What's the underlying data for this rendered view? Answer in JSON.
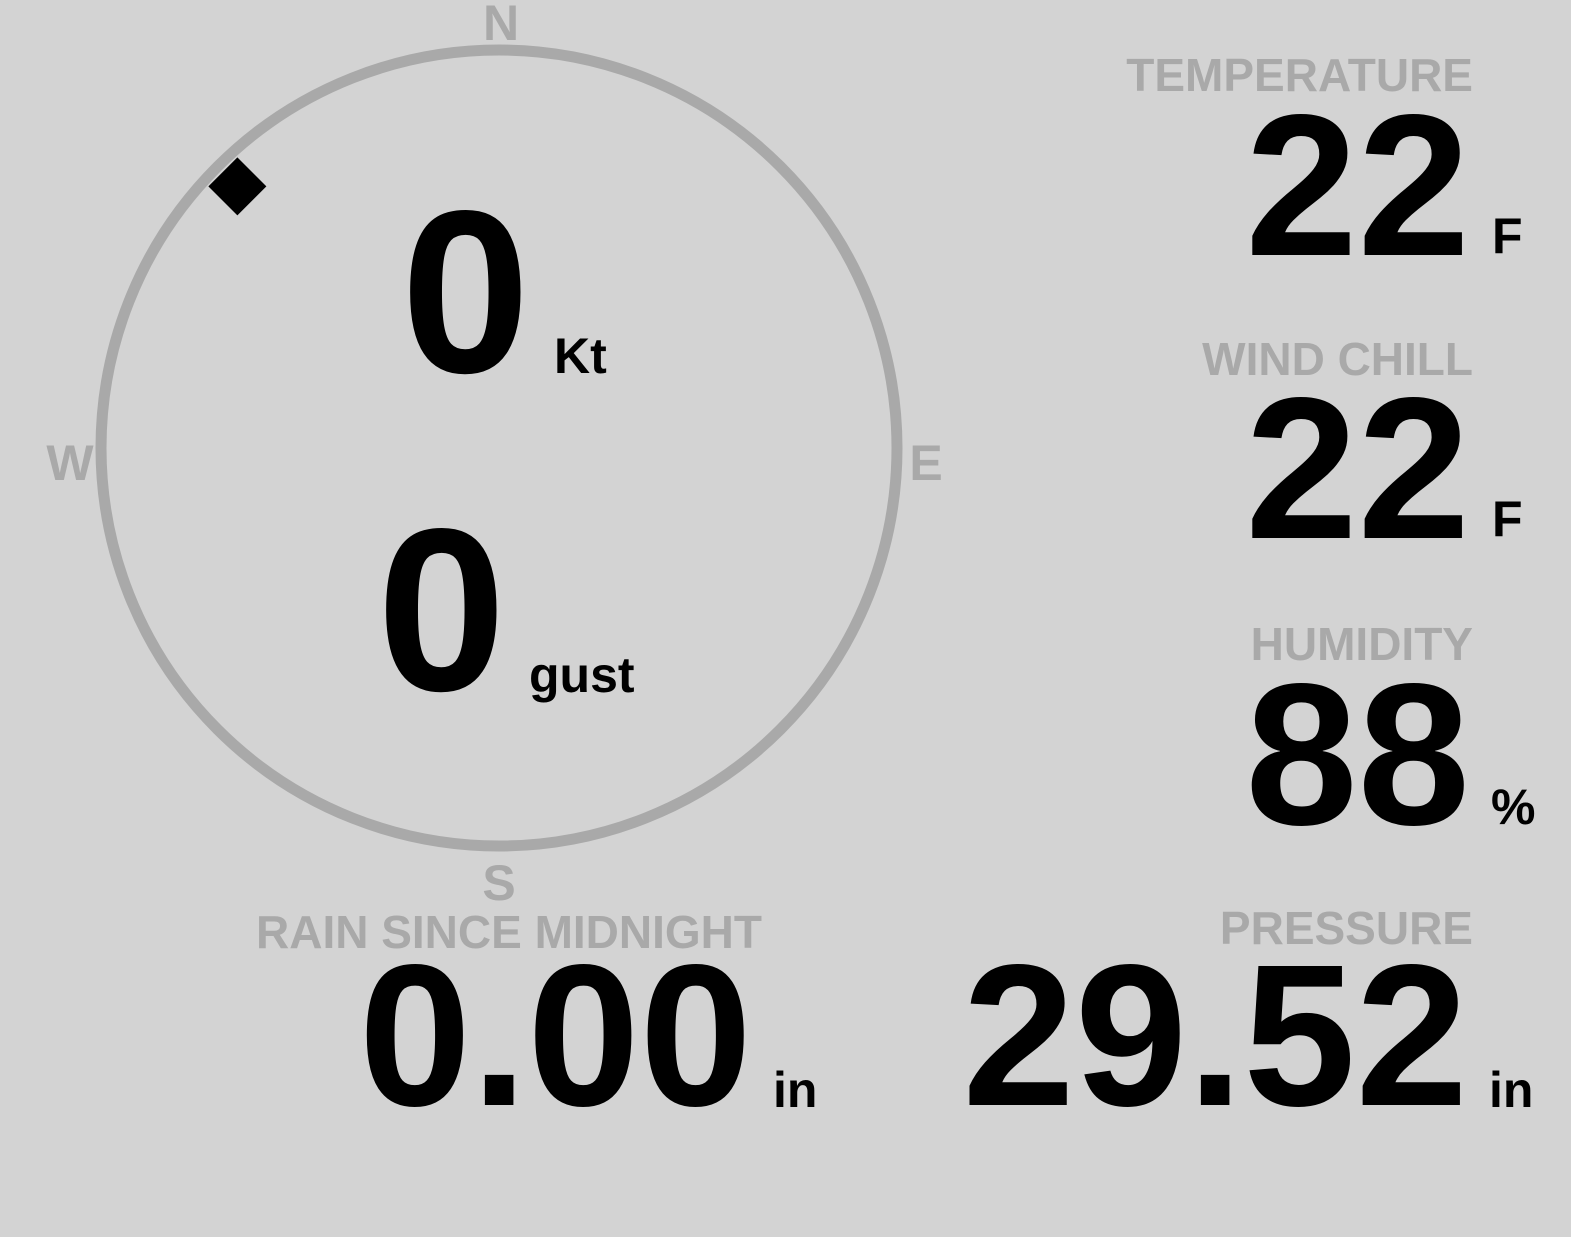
{
  "colors": {
    "background": "#d3d3d3",
    "label": "#a9a9a9",
    "value": "#000000"
  },
  "compass": {
    "north": "N",
    "east": "E",
    "south": "S",
    "west": "W",
    "wind_direction_deg": 315,
    "marker_icon": "diamond-icon"
  },
  "wind": {
    "speed": "0",
    "speed_unit": "Kt",
    "gust": "0",
    "gust_unit": "gust"
  },
  "temperature": {
    "label": "TEMPERATURE",
    "value": "22",
    "unit": "F"
  },
  "wind_chill": {
    "label": "WIND CHILL",
    "value": "22",
    "unit": "F"
  },
  "humidity": {
    "label": "HUMIDITY",
    "value": "88",
    "unit": "%"
  },
  "rain": {
    "label": "RAIN SINCE MIDNIGHT",
    "value": "0.00",
    "unit": "in"
  },
  "pressure": {
    "label": "PRESSURE",
    "value": "29.52",
    "unit": "in"
  }
}
